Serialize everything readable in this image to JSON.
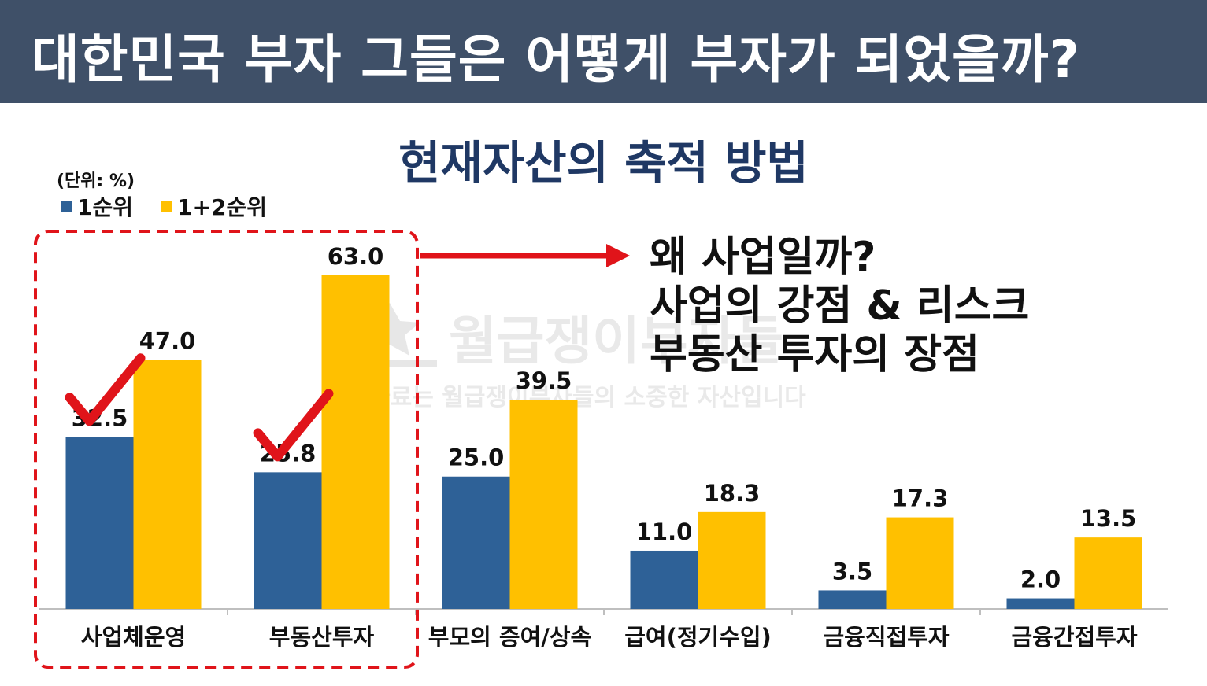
{
  "header": {
    "title": "대한민국 부자 그들은 어떻게 부자가 되었을까?"
  },
  "chart_data": {
    "type": "bar",
    "title": "현재자산의 축적 방법",
    "unit_label": "(단위: %)",
    "categories": [
      "사업체운영",
      "부동산투자",
      "부모의 증여/상속",
      "급여(정기수입)",
      "금융직접투자",
      "금융간접투자"
    ],
    "series": [
      {
        "name": "1순위",
        "color": "#2e6197",
        "values": [
          32.5,
          25.8,
          25.0,
          11.0,
          3.5,
          2.0
        ]
      },
      {
        "name": "1+2순위",
        "color": "#ffc000",
        "values": [
          47.0,
          63.0,
          39.5,
          18.3,
          17.3,
          13.5
        ]
      }
    ],
    "ylim": [
      0,
      63
    ],
    "legend_position": "top-left",
    "grid": false,
    "highlight": {
      "categories": [
        0,
        1
      ],
      "color": "#e0141a",
      "style": "dashed-box"
    },
    "checkmarks": [
      0,
      1
    ]
  },
  "callout": {
    "lines": [
      "왜 사업일까?",
      "사업의 강점 & 리스크",
      "부동산 투자의 장점"
    ]
  },
  "watermark": {
    "name": "월급쟁이부자들",
    "text": "이 자료는 월급쟁이부자들의 소중한 자산입니다"
  },
  "colors": {
    "header_bg": "#3f5068",
    "title": "#1f3864",
    "arrow": "#e0141a"
  }
}
